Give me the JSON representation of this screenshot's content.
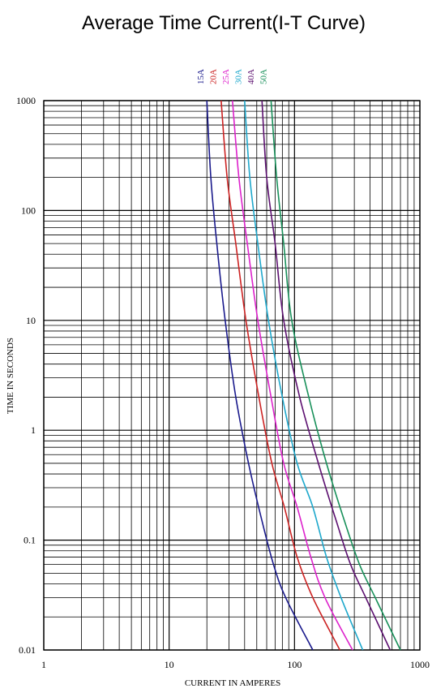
{
  "chart_data": {
    "type": "line",
    "title": "Average Time Current(I-T Curve)",
    "xlabel": "CURRENT IN AMPERES",
    "ylabel": "TIME IN SECONDS",
    "xscale": "log",
    "yscale": "log",
    "xlim": [
      1,
      1000
    ],
    "ylim": [
      0.01,
      1000
    ],
    "x_ticks": [
      "1",
      "10",
      "100",
      "1000"
    ],
    "y_ticks": [
      "0.01",
      "0.1",
      "1",
      "10",
      "100",
      "1000"
    ],
    "grid": true,
    "legend_position": "top",
    "series": [
      {
        "name": "15A",
        "color": "#1a1a8c",
        "points": [
          [
            20,
            1000
          ],
          [
            21.5,
            200
          ],
          [
            24,
            50
          ],
          [
            28,
            10
          ],
          [
            34,
            2
          ],
          [
            43,
            0.5
          ],
          [
            55,
            0.15
          ],
          [
            68,
            0.06
          ],
          [
            85,
            0.03
          ],
          [
            140,
            0.01
          ]
        ]
      },
      {
        "name": "20A",
        "color": "#cc2222",
        "points": [
          [
            26,
            1000
          ],
          [
            29,
            200
          ],
          [
            34,
            50
          ],
          [
            41,
            10
          ],
          [
            52,
            2
          ],
          [
            66,
            0.5
          ],
          [
            83,
            0.2
          ],
          [
            105,
            0.07
          ],
          [
            140,
            0.03
          ],
          [
            230,
            0.01
          ]
        ]
      },
      {
        "name": "25A",
        "color": "#dd22cc",
        "points": [
          [
            32,
            1000
          ],
          [
            36,
            200
          ],
          [
            42,
            50
          ],
          [
            51,
            10
          ],
          [
            65,
            2
          ],
          [
            82,
            0.5
          ],
          [
            105,
            0.2
          ],
          [
            135,
            0.07
          ],
          [
            175,
            0.03
          ],
          [
            290,
            0.01
          ]
        ]
      },
      {
        "name": "30A",
        "color": "#1ea8cc",
        "points": [
          [
            40,
            1000
          ],
          [
            44,
            200
          ],
          [
            51,
            50
          ],
          [
            62,
            10
          ],
          [
            80,
            2
          ],
          [
            105,
            0.5
          ],
          [
            140,
            0.2
          ],
          [
            180,
            0.07
          ],
          [
            235,
            0.03
          ],
          [
            350,
            0.01
          ]
        ]
      },
      {
        "name": "40A",
        "color": "#5c1070",
        "points": [
          [
            55,
            1000
          ],
          [
            60,
            200
          ],
          [
            70,
            50
          ],
          [
            82,
            10
          ],
          [
            110,
            2
          ],
          [
            155,
            0.5
          ],
          [
            215,
            0.15
          ],
          [
            280,
            0.06
          ],
          [
            370,
            0.03
          ],
          [
            580,
            0.01
          ]
        ]
      },
      {
        "name": "50A",
        "color": "#18905a",
        "points": [
          [
            65,
            1000
          ],
          [
            72,
            200
          ],
          [
            82,
            50
          ],
          [
            95,
            10
          ],
          [
            130,
            2
          ],
          [
            180,
            0.5
          ],
          [
            250,
            0.15
          ],
          [
            330,
            0.06
          ],
          [
            440,
            0.03
          ],
          [
            700,
            0.01
          ]
        ]
      }
    ]
  }
}
